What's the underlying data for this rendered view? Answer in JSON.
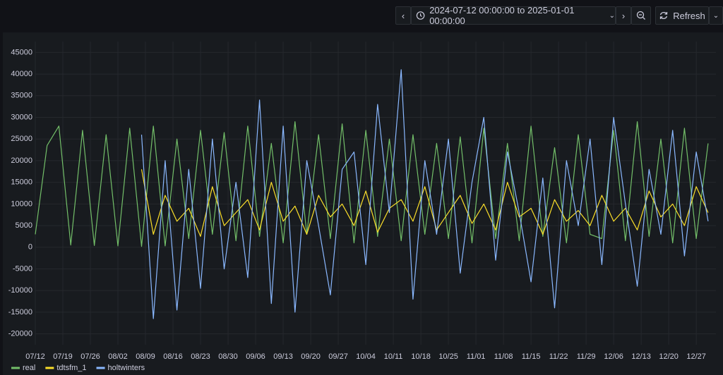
{
  "time_range": "2024-07-12 00:00:00 to 2025-01-01 00:00:00",
  "refresh": "Refresh",
  "chart_data": {
    "type": "line",
    "x": [
      "07/12",
      "07/15",
      "07/18",
      "07/21",
      "07/24",
      "07/27",
      "07/30",
      "08/02",
      "08/05",
      "08/08",
      "08/11",
      "08/14",
      "08/17",
      "08/20",
      "08/23",
      "08/26",
      "08/29",
      "09/01",
      "09/04",
      "09/07",
      "09/10",
      "09/13",
      "09/16",
      "09/19",
      "09/22",
      "09/25",
      "09/28",
      "10/01",
      "10/04",
      "10/07",
      "10/10",
      "10/13",
      "10/16",
      "10/19",
      "10/22",
      "10/25",
      "10/28",
      "10/31",
      "11/03",
      "11/06",
      "11/09",
      "11/12",
      "11/15",
      "11/18",
      "11/21",
      "11/24",
      "11/27",
      "11/30",
      "12/03",
      "12/06",
      "12/09",
      "12/12",
      "12/15",
      "12/18",
      "12/21",
      "12/24",
      "12/27",
      "12/30"
    ],
    "series": [
      {
        "name": "real",
        "color": "#73bf69",
        "values": [
          3000,
          23500,
          28000,
          500,
          27000,
          400,
          26000,
          300,
          27500,
          200,
          28000,
          300,
          25000,
          2000,
          27000,
          3000,
          26500,
          1500,
          28000,
          2500,
          24000,
          1000,
          29000,
          3000,
          26000,
          2000,
          28500,
          1000,
          27000,
          2500,
          25000,
          1500,
          26000,
          3000,
          24000,
          2000,
          25500,
          1000,
          27500,
          2000,
          24000,
          1500,
          28000,
          2500,
          23000,
          1000,
          26000,
          3000,
          2000,
          27000,
          1500,
          29000,
          2500,
          25000,
          1000,
          27500,
          2000,
          24000
        ]
      },
      {
        "name": "tdtsfm_1",
        "color": "#fade2a",
        "values": [
          null,
          null,
          null,
          null,
          null,
          null,
          null,
          null,
          null,
          18000,
          3000,
          12000,
          6000,
          9000,
          2500,
          14000,
          5000,
          8000,
          11000,
          4000,
          15000,
          6000,
          9500,
          3000,
          12000,
          7000,
          10000,
          5000,
          13000,
          3500,
          9000,
          11000,
          6000,
          14000,
          4000,
          8000,
          12000,
          5500,
          10000,
          4000,
          15000,
          7000,
          9000,
          3000,
          11000,
          6000,
          8500,
          5000,
          12000,
          6000,
          9000,
          4000,
          13000,
          7000,
          10000,
          5000,
          14000,
          8000
        ]
      },
      {
        "name": "holtwinters",
        "color": "#8ab8ff",
        "values": [
          null,
          null,
          null,
          null,
          null,
          null,
          null,
          null,
          null,
          26000,
          -16500,
          20000,
          -14500,
          18000,
          -9500,
          25000,
          -5000,
          15000,
          -7000,
          34000,
          -13000,
          28000,
          -15000,
          20000,
          5000,
          -11000,
          18000,
          22000,
          -4000,
          33000,
          8000,
          41000,
          -12000,
          20000,
          3000,
          25000,
          -6000,
          15000,
          30000,
          -3000,
          22000,
          8000,
          -8000,
          16000,
          -14000,
          20000,
          5000,
          25000,
          -4000,
          30000,
          10000,
          -9000,
          18000,
          3000,
          27000,
          -2000,
          22000,
          6000
        ]
      }
    ],
    "xlim": [
      "07/12",
      "01/01"
    ],
    "xticks": [
      "07/12",
      "07/19",
      "07/26",
      "08/02",
      "08/09",
      "08/16",
      "08/23",
      "08/30",
      "09/06",
      "09/13",
      "09/20",
      "09/27",
      "10/04",
      "10/11",
      "10/18",
      "10/25",
      "11/01",
      "11/08",
      "11/15",
      "11/22",
      "11/29",
      "12/06",
      "12/13",
      "12/20",
      "12/27"
    ],
    "ylim": [
      -22500,
      47500
    ],
    "yticks": [
      45000,
      40000,
      35000,
      30000,
      25000,
      20000,
      15000,
      10000,
      5000,
      0,
      -5000,
      -10000,
      -15000,
      -20000
    ],
    "grid": true,
    "legend": "bottom"
  }
}
